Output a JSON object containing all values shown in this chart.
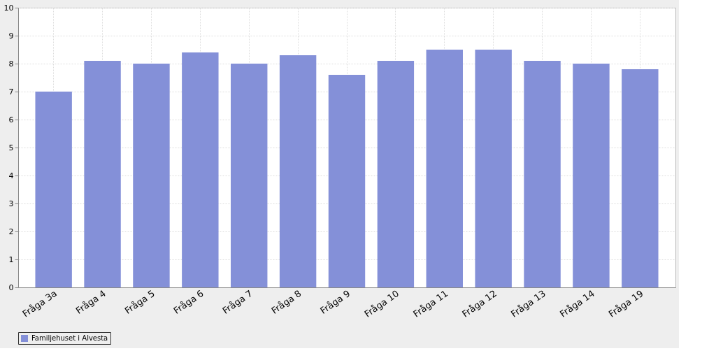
{
  "chart_data": {
    "type": "bar",
    "categories": [
      "Fråga 3a",
      "Fråga 4",
      "Fråga 5",
      "Fråga 6",
      "Fråga 7",
      "Fråga 8",
      "Fråga 9",
      "Fråga 10",
      "Fråga 11",
      "Fråga 12",
      "Fråga 13",
      "Fråga 14",
      "Fråga 19"
    ],
    "series": [
      {
        "name": "Familjehuset i Alvesta",
        "color": "#8490d8",
        "values": [
          7.0,
          8.1,
          8.0,
          8.4,
          8.0,
          8.3,
          7.6,
          8.1,
          8.5,
          8.5,
          8.1,
          8.0,
          7.8
        ]
      }
    ],
    "ylim": [
      0,
      10
    ],
    "yticks": [
      0,
      1,
      2,
      3,
      4,
      5,
      6,
      7,
      8,
      9,
      10
    ],
    "grid": true,
    "legend": "bottom"
  }
}
